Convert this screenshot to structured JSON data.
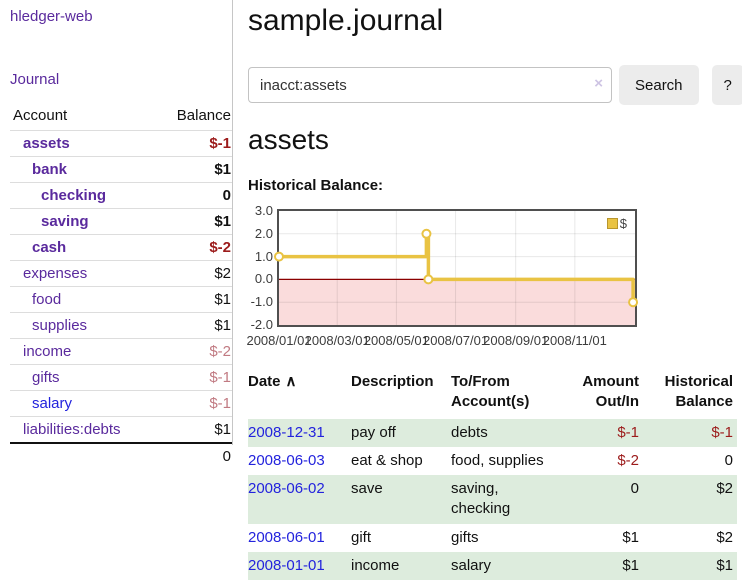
{
  "sidebar": {
    "brand": "hledger-web",
    "journal_link": "Journal",
    "accounts_table": {
      "account_header": "Account",
      "balance_header": "Balance",
      "rows": [
        {
          "name": "assets",
          "depth": 1,
          "bold": true,
          "link_color": "purple",
          "balance": "$-1",
          "balance_style": "neg-strong"
        },
        {
          "name": "bank",
          "depth": 2,
          "bold": true,
          "link_color": "purple",
          "balance": "$1",
          "balance_style": "pos"
        },
        {
          "name": "checking",
          "depth": 3,
          "bold": true,
          "link_color": "purple",
          "balance": "0",
          "balance_style": "pos"
        },
        {
          "name": "saving",
          "depth": 3,
          "bold": true,
          "link_color": "purple",
          "balance": "$1",
          "balance_style": "pos"
        },
        {
          "name": "cash",
          "depth": 2,
          "bold": true,
          "link_color": "purple",
          "balance": "$-2",
          "balance_style": "neg-strong"
        },
        {
          "name": "expenses",
          "depth": 1,
          "bold": false,
          "link_color": "purple",
          "balance": "$2",
          "balance_style": "pos"
        },
        {
          "name": "food",
          "depth": 2,
          "bold": false,
          "link_color": "purple",
          "balance": "$1",
          "balance_style": "pos"
        },
        {
          "name": "supplies",
          "depth": 2,
          "bold": false,
          "link_color": "purple",
          "balance": "$1",
          "balance_style": "pos"
        },
        {
          "name": "income",
          "depth": 1,
          "bold": false,
          "link_color": "purple",
          "balance": "$-2",
          "balance_style": "neg-soft"
        },
        {
          "name": "gifts",
          "depth": 2,
          "bold": false,
          "link_color": "purple",
          "balance": "$-1",
          "balance_style": "neg-soft"
        },
        {
          "name": "salary",
          "depth": 2,
          "bold": false,
          "link_color": "blue",
          "balance": "$-1",
          "balance_style": "neg-soft"
        },
        {
          "name": "liabilities:debts",
          "depth": 1,
          "bold": false,
          "link_color": "purple",
          "balance": "$1",
          "balance_style": "pos"
        }
      ],
      "total": "0"
    }
  },
  "header": {
    "title": "sample.journal"
  },
  "search": {
    "value": "inacct:assets",
    "clear_icon": "×",
    "search_button": "Search",
    "help_button": "?"
  },
  "account_page": {
    "heading": "assets",
    "chart_title": "Historical Balance:"
  },
  "chart_data": {
    "type": "line",
    "title": "Historical Balance:",
    "step": true,
    "series": [
      {
        "name": "$",
        "color": "#e9c343",
        "points": [
          {
            "date": "2008-01-01",
            "value": 1
          },
          {
            "date": "2008-06-01",
            "value": 2
          },
          {
            "date": "2008-06-03",
            "value": 0
          },
          {
            "date": "2008-12-31",
            "value": -1
          }
        ]
      }
    ],
    "x_ticks": [
      {
        "date": "2008-01-01",
        "label": "2008/01/01"
      },
      {
        "date": "2008-03-01",
        "label": "2008/03/01"
      },
      {
        "date": "2008-05-01",
        "label": "2008/05/01"
      },
      {
        "date": "2008-07-01",
        "label": "2008/07/01"
      },
      {
        "date": "2008-09-01",
        "label": "2008/09/01"
      },
      {
        "date": "2008-11-01",
        "label": "2008/11/01"
      }
    ],
    "y_ticks": [
      {
        "value": 3,
        "label": "3.0"
      },
      {
        "value": 2,
        "label": "2.0"
      },
      {
        "value": 1,
        "label": "1.0"
      },
      {
        "value": 0,
        "label": "0.0"
      },
      {
        "value": -1,
        "label": "-1.0"
      },
      {
        "value": -2,
        "label": "-2.0"
      }
    ],
    "ylim": [
      -2,
      3
    ],
    "xlim": [
      "2008-01-01",
      "2009-01-02"
    ],
    "grid": true,
    "legend": "$",
    "legend_position": "top-right",
    "negative_region_color": "#fadcdc",
    "zero_line_color": "#8b0000"
  },
  "register_table": {
    "headers": {
      "date": "Date",
      "sort_icon": "∧",
      "description": "Description",
      "accounts": "To/From Account(s)",
      "amount": "Amount Out/In",
      "balance": "Historical Balance"
    },
    "rows": [
      {
        "date": "2008-12-31",
        "description": "pay off",
        "accounts": "debts",
        "amount": "$-1",
        "amount_style": "neg",
        "balance": "$-1",
        "balance_style": "neg"
      },
      {
        "date": "2008-06-03",
        "description": "eat & shop",
        "accounts": "food, supplies",
        "amount": "$-2",
        "amount_style": "neg",
        "balance": "0",
        "balance_style": "pos"
      },
      {
        "date": "2008-06-02",
        "description": "save",
        "accounts": "saving, checking",
        "amount": "0",
        "amount_style": "pos",
        "balance": "$2",
        "balance_style": "pos"
      },
      {
        "date": "2008-06-01",
        "description": "gift",
        "accounts": "gifts",
        "amount": "$1",
        "amount_style": "pos",
        "balance": "$2",
        "balance_style": "pos"
      },
      {
        "date": "2008-01-01",
        "description": "income",
        "accounts": "salary",
        "amount": "$1",
        "amount_style": "pos",
        "balance": "$1",
        "balance_style": "pos"
      }
    ]
  }
}
